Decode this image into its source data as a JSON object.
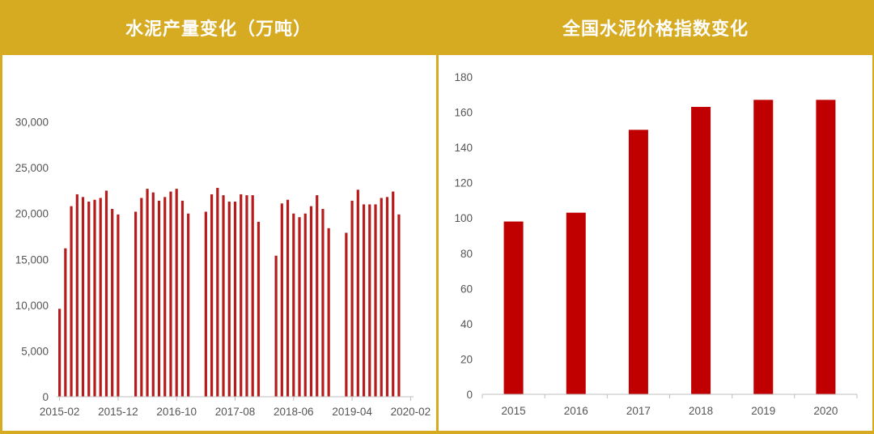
{
  "colors": {
    "header_bg": "#d6ab22",
    "bar": "#c00000",
    "bar_left": "#b71c1c",
    "axis": "#bfbfbf"
  },
  "chart_data": [
    {
      "type": "bar",
      "title": "水泥产量变化（万吨）",
      "ylim": [
        0,
        35000
      ],
      "yticks": [
        0,
        5000,
        10000,
        15000,
        20000,
        25000,
        30000
      ],
      "ytick_labels": [
        "0",
        "5,000",
        "10,000",
        "15,000",
        "20,000",
        "25,000",
        "30,000"
      ],
      "xtick_labels": [
        "2015-02",
        "2015-12",
        "2016-10",
        "2017-08",
        "2018-06",
        "2019-04",
        "2020-02"
      ],
      "xtick_index": [
        0,
        10,
        20,
        30,
        40,
        50,
        60
      ],
      "categories": [
        "2015-02",
        "2015-03",
        "2015-04",
        "2015-05",
        "2015-06",
        "2015-07",
        "2015-08",
        "2015-09",
        "2015-10",
        "2015-11",
        "2015-12",
        "2016-01",
        "2016-02",
        "2016-03",
        "2016-04",
        "2016-05",
        "2016-06",
        "2016-07",
        "2016-08",
        "2016-09",
        "2016-10",
        "2016-11",
        "2016-12",
        "2017-01",
        "2017-02",
        "2017-03",
        "2017-04",
        "2017-05",
        "2017-06",
        "2017-07",
        "2017-08",
        "2017-09",
        "2017-10",
        "2017-11",
        "2017-12",
        "2018-01",
        "2018-02",
        "2018-03",
        "2018-04",
        "2018-05",
        "2018-06",
        "2018-07",
        "2018-08",
        "2018-09",
        "2018-10",
        "2018-11",
        "2018-12",
        "2019-01",
        "2019-02",
        "2019-03",
        "2019-04",
        "2019-05",
        "2019-06",
        "2019-07",
        "2019-08",
        "2019-09",
        "2019-10",
        "2019-11",
        "2019-12",
        "2020-01",
        "2020-02"
      ],
      "values": [
        9600,
        16200,
        20800,
        22100,
        21800,
        21300,
        21500,
        21700,
        22500,
        20500,
        19900,
        null,
        null,
        20200,
        21700,
        22700,
        22300,
        21400,
        21800,
        22400,
        22700,
        21400,
        20000,
        null,
        null,
        20200,
        22100,
        22800,
        22000,
        21300,
        21300,
        22100,
        22000,
        22000,
        19100,
        null,
        null,
        15400,
        21100,
        21500,
        20000,
        19600,
        20000,
        20800,
        22000,
        20500,
        18400,
        null,
        null,
        17900,
        21400,
        22600,
        21000,
        21000,
        21000,
        21700,
        21800,
        22400,
        19900,
        null,
        null
      ]
    },
    {
      "type": "bar",
      "title": "全国水泥价格指数变化",
      "ylim": [
        0,
        180
      ],
      "yticks": [
        0,
        20,
        40,
        60,
        80,
        100,
        120,
        140,
        160,
        180
      ],
      "categories": [
        "2015",
        "2016",
        "2017",
        "2018",
        "2019",
        "2020"
      ],
      "values": [
        98,
        103,
        150,
        163,
        167,
        167
      ]
    }
  ]
}
